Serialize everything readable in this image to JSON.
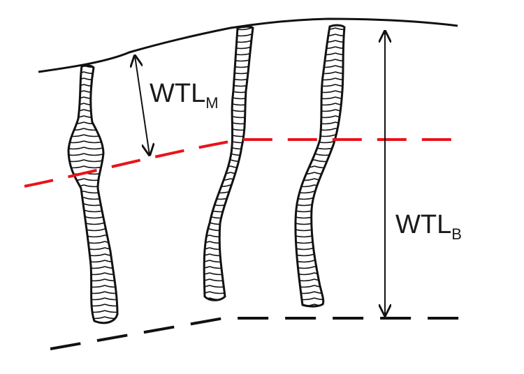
{
  "labels": {
    "wtl_m": {
      "main": "WTL",
      "sub": "M"
    },
    "wtl_b": {
      "main": "WTL",
      "sub": "B"
    }
  },
  "colors": {
    "outline": "#111111",
    "mean_line": "#e8141b",
    "base_line": "#111111",
    "fill": "#ffffff"
  }
}
